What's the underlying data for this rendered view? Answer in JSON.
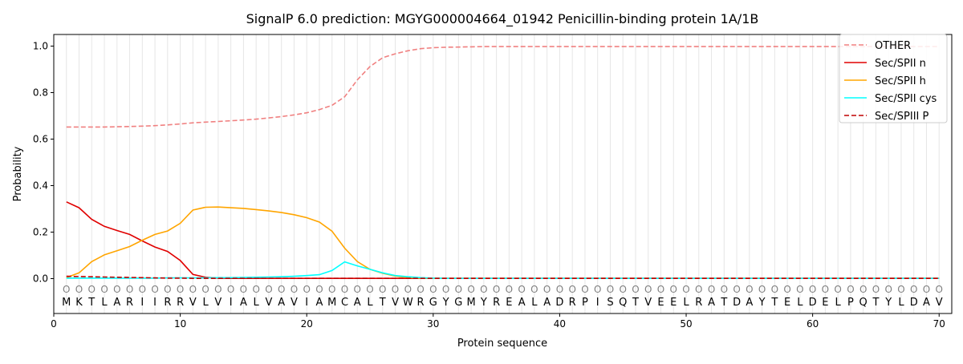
{
  "chart_data": {
    "type": "line",
    "title": "SignalP 6.0 prediction: MGYG000004664_01942 Penicillin-binding protein 1A/1B",
    "xlabel": "Protein sequence",
    "ylabel": "Probability",
    "xlim": [
      0,
      71
    ],
    "ylim": [
      -0.15,
      1.05
    ],
    "x_ticks": [
      0,
      10,
      20,
      30,
      40,
      50,
      60,
      70
    ],
    "y_ticks": [
      0.0,
      0.2,
      0.4,
      0.6,
      0.8,
      1.0
    ],
    "x_tick_labels": [
      "0",
      "10",
      "20",
      "30",
      "40",
      "50",
      "60",
      "70"
    ],
    "y_tick_labels": [
      "0.0",
      "0.2",
      "0.4",
      "0.6",
      "0.8",
      "1.0"
    ],
    "grid": "vertical lines at each residue",
    "legend_position": "top-right",
    "sequence": [
      "M",
      "K",
      "T",
      "L",
      "A",
      "R",
      "I",
      "I",
      "R",
      "R",
      "V",
      "L",
      "V",
      "I",
      "A",
      "L",
      "V",
      "A",
      "V",
      "I",
      "A",
      "M",
      "C",
      "A",
      "L",
      "T",
      "V",
      "W",
      "R",
      "G",
      "Y",
      "G",
      "M",
      "Y",
      "R",
      "E",
      "A",
      "L",
      "A",
      "D",
      "R",
      "P",
      "I",
      "S",
      "Q",
      "T",
      "V",
      "E",
      "E",
      "L",
      "R",
      "A",
      "T",
      "D",
      "A",
      "Y",
      "T",
      "E",
      "L",
      "D",
      "E",
      "L",
      "P",
      "Q",
      "T",
      "Y",
      "L",
      "D",
      "A",
      "V"
    ],
    "region_labels": [
      "O",
      "O",
      "O",
      "O",
      "O",
      "O",
      "O",
      "O",
      "O",
      "O",
      "O",
      "O",
      "O",
      "O",
      "O",
      "O",
      "O",
      "O",
      "O",
      "O",
      "O",
      "O",
      "O",
      "O",
      "O",
      "O",
      "O",
      "O",
      "O",
      "O",
      "O",
      "O",
      "O",
      "O",
      "O",
      "O",
      "O",
      "O",
      "O",
      "O",
      "O",
      "O",
      "O",
      "O",
      "O",
      "O",
      "O",
      "O",
      "O",
      "O",
      "O",
      "O",
      "O",
      "O",
      "O",
      "O",
      "O",
      "O",
      "O",
      "O",
      "O",
      "O",
      "O",
      "O",
      "O",
      "O",
      "O",
      "O",
      "O",
      "O"
    ],
    "series": [
      {
        "name": "OTHER",
        "color": "#f08080",
        "dash": "dashed",
        "values": [
          0.652,
          0.652,
          0.652,
          0.652,
          0.653,
          0.654,
          0.656,
          0.658,
          0.661,
          0.665,
          0.67,
          0.673,
          0.676,
          0.679,
          0.682,
          0.686,
          0.691,
          0.697,
          0.704,
          0.713,
          0.727,
          0.745,
          0.782,
          0.855,
          0.912,
          0.95,
          0.967,
          0.98,
          0.989,
          0.993,
          0.995,
          0.996,
          0.997,
          0.998,
          0.998,
          0.998,
          0.998,
          0.998,
          0.998,
          0.998,
          0.998,
          0.998,
          0.998,
          0.998,
          0.998,
          0.998,
          0.998,
          0.998,
          0.998,
          0.998,
          0.998,
          0.998,
          0.998,
          0.998,
          0.998,
          0.998,
          0.998,
          0.998,
          0.998,
          0.998,
          0.998,
          0.998,
          0.998,
          0.998,
          0.998,
          0.998,
          0.998,
          0.998,
          0.998,
          0.998
        ]
      },
      {
        "name": "Sec/SPII n",
        "color": "#e00000",
        "dash": "solid",
        "values": [
          0.33,
          0.305,
          0.255,
          0.225,
          0.207,
          0.19,
          0.162,
          0.136,
          0.117,
          0.078,
          0.018,
          0.006,
          0.002,
          0.001,
          0.001,
          0.001,
          0.001,
          0.001,
          0.001,
          0.001,
          0.001,
          0.001,
          0.001,
          0.001,
          0.001,
          0.001,
          0.001,
          0.001,
          0.001,
          0.001,
          0.001,
          0.001,
          0.001,
          0.001,
          0.001,
          0.001,
          0.001,
          0.001,
          0.001,
          0.001,
          0.001,
          0.001,
          0.001,
          0.001,
          0.001,
          0.001,
          0.001,
          0.001,
          0.001,
          0.001,
          0.001,
          0.001,
          0.001,
          0.001,
          0.001,
          0.001,
          0.001,
          0.001,
          0.001,
          0.001,
          0.001,
          0.001,
          0.001,
          0.001,
          0.001,
          0.001,
          0.001,
          0.001,
          0.001,
          0.001
        ]
      },
      {
        "name": "Sec/SPII h",
        "color": "#ffa500",
        "dash": "solid",
        "values": [
          0.004,
          0.025,
          0.073,
          0.102,
          0.12,
          0.138,
          0.165,
          0.19,
          0.205,
          0.238,
          0.295,
          0.307,
          0.308,
          0.305,
          0.302,
          0.297,
          0.291,
          0.284,
          0.275,
          0.262,
          0.243,
          0.204,
          0.131,
          0.073,
          0.04,
          0.023,
          0.011,
          0.005,
          0.002,
          0.001,
          0.001,
          0.001,
          0.001,
          0.001,
          0.001,
          0.001,
          0.001,
          0.001,
          0.001,
          0.001,
          0.001,
          0.001,
          0.001,
          0.001,
          0.001,
          0.001,
          0.001,
          0.001,
          0.001,
          0.001,
          0.001,
          0.001,
          0.001,
          0.001,
          0.001,
          0.001,
          0.001,
          0.001,
          0.001,
          0.001,
          0.001,
          0.001,
          0.001,
          0.001,
          0.001,
          0.001,
          0.001,
          0.001,
          0.001,
          0.001
        ]
      },
      {
        "name": "Sec/SPII cys",
        "color": "#00ffff",
        "dash": "solid",
        "values": [
          0.002,
          0.002,
          0.002,
          0.002,
          0.002,
          0.002,
          0.002,
          0.002,
          0.003,
          0.003,
          0.003,
          0.003,
          0.004,
          0.004,
          0.005,
          0.006,
          0.007,
          0.008,
          0.01,
          0.013,
          0.017,
          0.035,
          0.072,
          0.055,
          0.04,
          0.025,
          0.013,
          0.008,
          0.004,
          0.002,
          0.001,
          0.001,
          0.001,
          0.001,
          0.001,
          0.001,
          0.001,
          0.001,
          0.001,
          0.001,
          0.001,
          0.001,
          0.001,
          0.001,
          0.001,
          0.001,
          0.001,
          0.001,
          0.001,
          0.001,
          0.001,
          0.001,
          0.001,
          0.001,
          0.001,
          0.001,
          0.001,
          0.001,
          0.001,
          0.001,
          0.001,
          0.001,
          0.001,
          0.001,
          0.001,
          0.001,
          0.001,
          0.001,
          0.001,
          0.001
        ]
      },
      {
        "name": "Sec/SPIII P",
        "color": "#c00000",
        "dash": "dashed",
        "values": [
          0.01,
          0.009,
          0.008,
          0.007,
          0.006,
          0.005,
          0.004,
          0.003,
          0.002,
          0.002,
          0.001,
          0.001,
          0.001,
          0.001,
          0.001,
          0.001,
          0.001,
          0.001,
          0.001,
          0.001,
          0.001,
          0.001,
          0.001,
          0.001,
          0.001,
          0.001,
          0.001,
          0.001,
          0.001,
          0.001,
          0.001,
          0.001,
          0.001,
          0.001,
          0.001,
          0.001,
          0.001,
          0.001,
          0.001,
          0.001,
          0.001,
          0.001,
          0.001,
          0.001,
          0.001,
          0.001,
          0.001,
          0.001,
          0.001,
          0.001,
          0.001,
          0.001,
          0.001,
          0.001,
          0.001,
          0.001,
          0.001,
          0.001,
          0.001,
          0.001,
          0.001,
          0.001,
          0.001,
          0.001,
          0.001,
          0.001,
          0.001,
          0.001,
          0.001,
          0.001
        ]
      }
    ]
  }
}
